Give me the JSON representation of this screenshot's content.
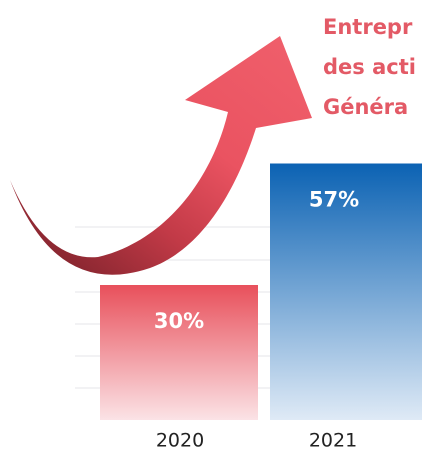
{
  "chart_data": {
    "type": "bar",
    "title_lines": [
      "Entrepr",
      "des acti",
      "Généra"
    ],
    "categories": [
      "2020",
      "2021"
    ],
    "values": [
      30,
      57
    ],
    "value_labels": [
      "30%",
      "57%"
    ],
    "colors": [
      "#e8505b",
      "#0b62b3"
    ],
    "title_color": "#e35a66"
  }
}
